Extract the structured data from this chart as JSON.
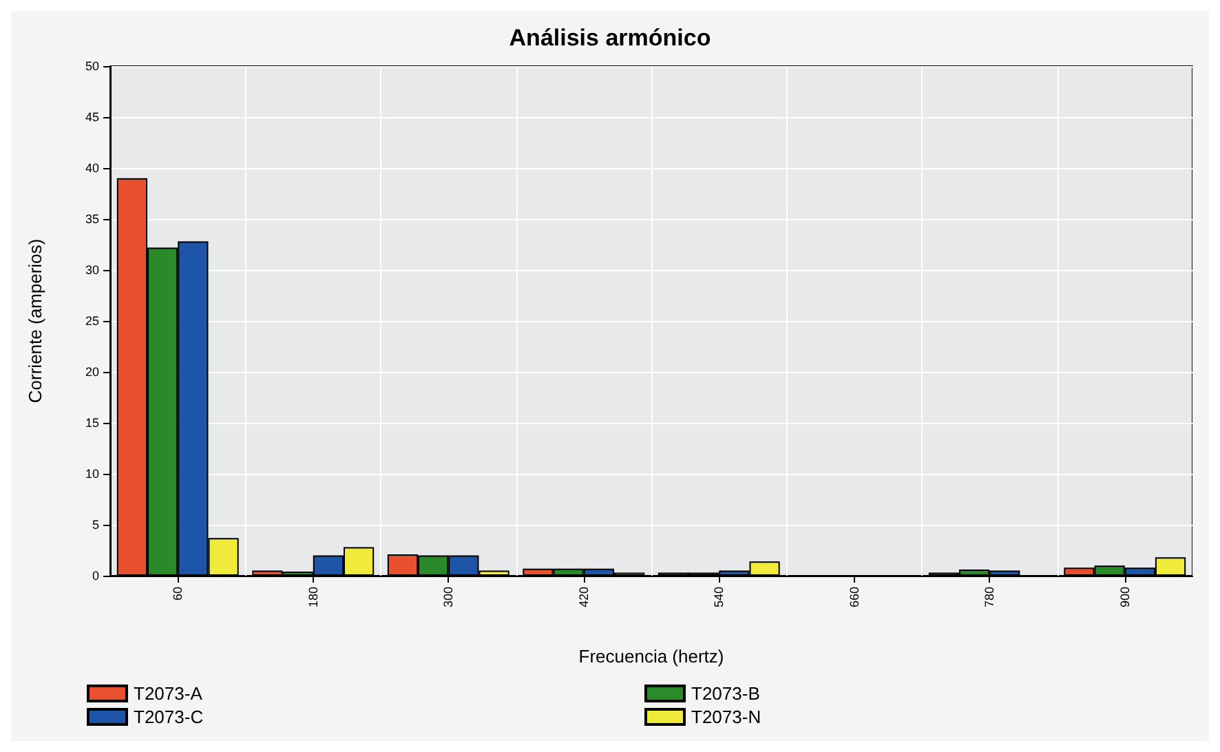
{
  "chart_data": {
    "type": "bar",
    "title": "Análisis armónico",
    "xlabel": "Frecuencia (hertz)",
    "ylabel": "Corriente (amperios)",
    "categories": [
      "60",
      "180",
      "300",
      "420",
      "540",
      "660",
      "780",
      "900"
    ],
    "series": [
      {
        "name": "T2073-A",
        "color": "#e8502e",
        "values": [
          39,
          0.5,
          2.1,
          0.7,
          0.3,
          null,
          0.3,
          0.8
        ]
      },
      {
        "name": "T2073-B",
        "color": "#2a8a2a",
        "values": [
          32.2,
          0.4,
          2.0,
          0.7,
          0.3,
          null,
          0.6,
          1.0
        ]
      },
      {
        "name": "T2073-C",
        "color": "#1f55a8",
        "values": [
          32.8,
          2.0,
          2.0,
          0.7,
          0.5,
          null,
          0.5,
          0.8
        ]
      },
      {
        "name": "T2073-N",
        "color": "#f0ea3a",
        "values": [
          3.7,
          2.8,
          0.5,
          0.3,
          1.4,
          null,
          null,
          1.8
        ]
      }
    ],
    "ylim": [
      0,
      50
    ],
    "yticks": [
      0,
      5,
      10,
      15,
      20,
      25,
      30,
      35,
      40,
      45,
      50
    ],
    "grid": true,
    "legend": "bottom"
  }
}
